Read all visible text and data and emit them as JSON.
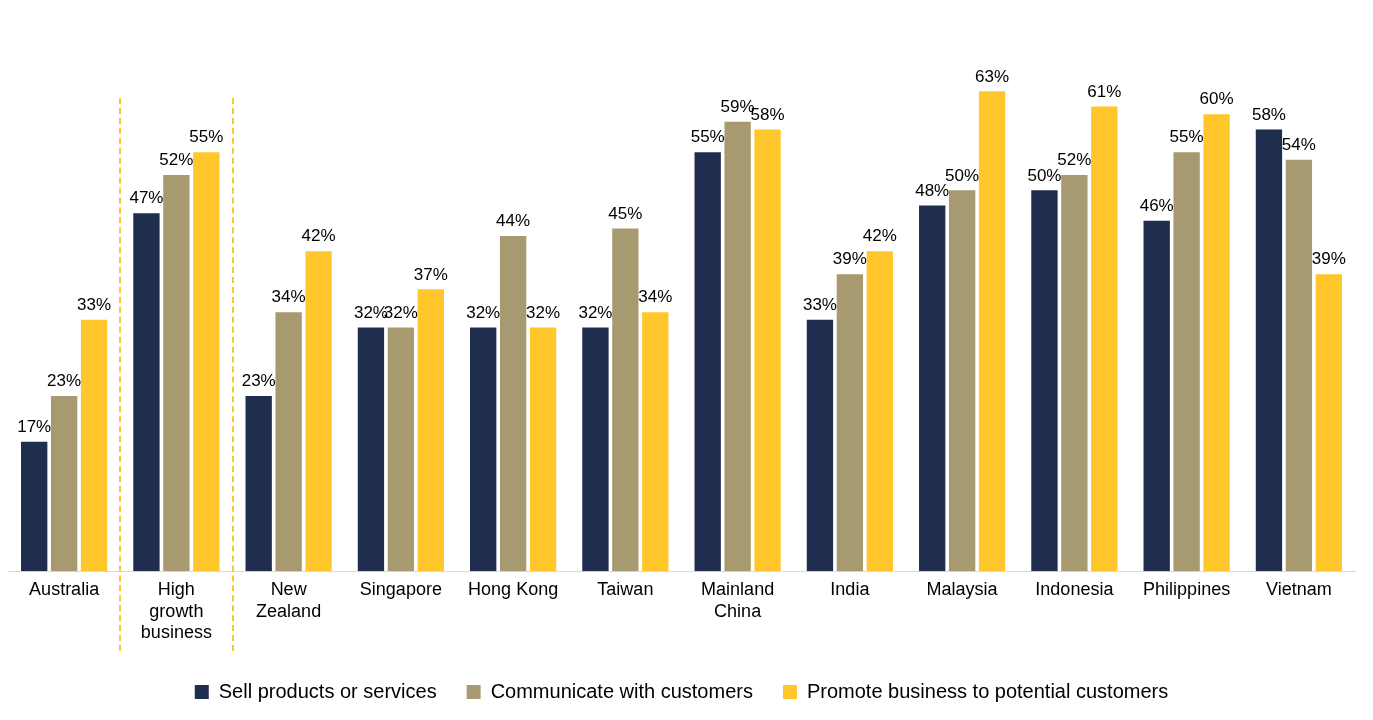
{
  "chart_data": {
    "type": "bar",
    "categories": [
      "Australia",
      "High growth business",
      "New Zealand",
      "Singapore",
      "Hong Kong",
      "Taiwan",
      "Mainland China",
      "India",
      "Malaysia",
      "Indonesia",
      "Philippines",
      "Vietnam"
    ],
    "series": [
      {
        "name": "Sell products or services",
        "color": "#1f2d4e",
        "values": [
          17,
          47,
          23,
          32,
          32,
          32,
          55,
          33,
          48,
          50,
          46,
          58
        ],
        "value_labels": [
          "17%",
          "47%",
          "23%",
          "32%",
          "32%",
          "32%",
          "55%",
          "33%",
          "48%",
          "50%",
          "46%",
          "58%"
        ]
      },
      {
        "name": "Communicate with customers",
        "color": "#a89a70",
        "values": [
          23,
          52,
          34,
          32,
          44,
          45,
          59,
          39,
          50,
          52,
          55,
          54
        ],
        "value_labels": [
          "23%",
          "52%",
          "34%",
          "32%",
          "44%",
          "45%",
          "59%",
          "39%",
          "50%",
          "52%",
          "55%",
          "54%"
        ]
      },
      {
        "name": "Promote business to potential customers",
        "color": "#ffc72c",
        "values": [
          33,
          55,
          42,
          37,
          32,
          34,
          58,
          42,
          63,
          61,
          60,
          39
        ],
        "value_labels": [
          "33%",
          "55%",
          "42%",
          "37%",
          "32%",
          "34%",
          "58%",
          "42%",
          "63%",
          "61%",
          "60%",
          "39%"
        ]
      }
    ],
    "tick_labels": "x",
    "legend": "bottom"
  }
}
